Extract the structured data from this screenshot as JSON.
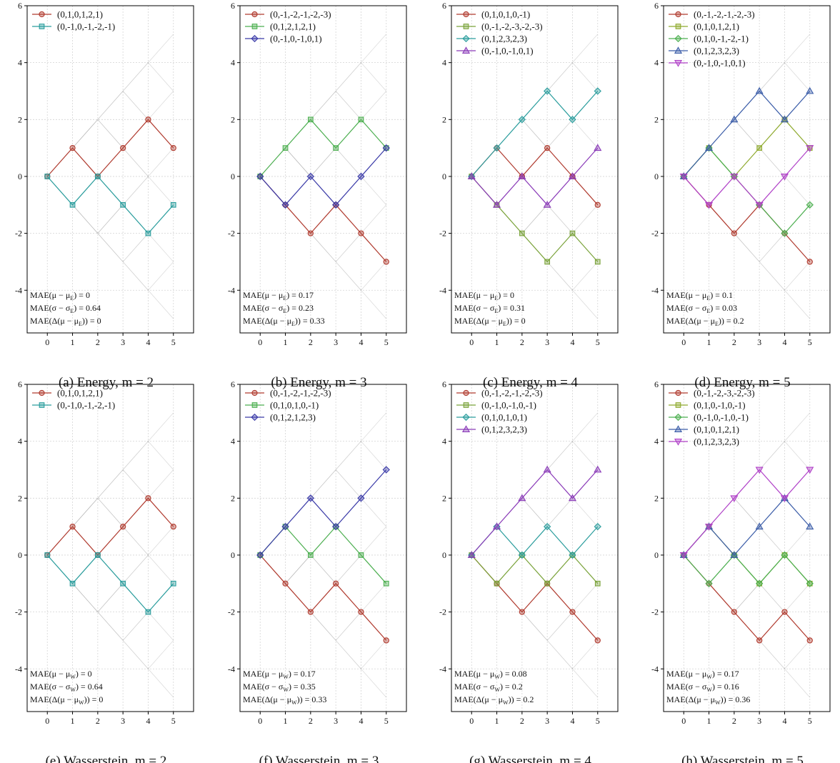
{
  "chart_data": [
    {
      "type": "line",
      "caption": "(a) Energy, m = 2",
      "xlim": [
        -0.8,
        5.8
      ],
      "ylim": [
        -5.5,
        6
      ],
      "x": [
        0,
        1,
        2,
        3,
        4,
        5
      ],
      "xticks": [
        "0",
        "1",
        "2",
        "3",
        "4",
        "5"
      ],
      "yticks": [
        "6",
        "4",
        "2",
        "0",
        "-2",
        "-4"
      ],
      "grid": true,
      "legend": "top-left",
      "series": [
        {
          "name": "(0,1,0,1,2,1)",
          "values": [
            0,
            1,
            0,
            1,
            2,
            1
          ],
          "color": "#b03a2e",
          "marker": "circle"
        },
        {
          "name": "(0,-1,0,-1,-2,-1)",
          "values": [
            0,
            -1,
            0,
            -1,
            -2,
            -1
          ],
          "color": "#2a9d9d",
          "marker": "square"
        }
      ],
      "annotations": [
        {
          "metric": "MAE(μ − μ",
          "sub": "E",
          "tail": ") = 0"
        },
        {
          "metric": "MAE(σ − σ",
          "sub": "E",
          "tail": ") = 0.64"
        },
        {
          "metric": "MAE(Δ(μ − μ",
          "sub": "E",
          "tail": ")) = 0"
        }
      ]
    },
    {
      "type": "line",
      "caption": "(b) Energy, m = 3",
      "xlim": [
        -0.8,
        5.8
      ],
      "ylim": [
        -5.5,
        6
      ],
      "x": [
        0,
        1,
        2,
        3,
        4,
        5
      ],
      "xticks": [
        "0",
        "1",
        "2",
        "3",
        "4",
        "5"
      ],
      "yticks": [
        "6",
        "4",
        "2",
        "0",
        "-2",
        "-4"
      ],
      "grid": true,
      "legend": "top-left",
      "series": [
        {
          "name": "(0,-1,-2,-1,-2,-3)",
          "values": [
            0,
            -1,
            -2,
            -1,
            -2,
            -3
          ],
          "color": "#b03a2e",
          "marker": "circle"
        },
        {
          "name": "(0,1,2,1,2,1)",
          "values": [
            0,
            1,
            2,
            1,
            2,
            1
          ],
          "color": "#4caf50",
          "marker": "square"
        },
        {
          "name": "(0,-1,0,-1,0,1)",
          "values": [
            0,
            -1,
            0,
            -1,
            0,
            1
          ],
          "color": "#3a3aa8",
          "marker": "diamond"
        }
      ],
      "annotations": [
        {
          "metric": "MAE(μ − μ",
          "sub": "E",
          "tail": ") = 0.17"
        },
        {
          "metric": "MAE(σ − σ",
          "sub": "E",
          "tail": ") = 0.23"
        },
        {
          "metric": "MAE(Δ(μ − μ",
          "sub": "E",
          "tail": ")) = 0.33"
        }
      ]
    },
    {
      "type": "line",
      "caption": "(c) Energy, m = 4",
      "xlim": [
        -0.8,
        5.8
      ],
      "ylim": [
        -5.5,
        6
      ],
      "x": [
        0,
        1,
        2,
        3,
        4,
        5
      ],
      "xticks": [
        "0",
        "1",
        "2",
        "3",
        "4",
        "5"
      ],
      "yticks": [
        "6",
        "4",
        "2",
        "0",
        "-2",
        "-4"
      ],
      "grid": true,
      "legend": "top-left",
      "series": [
        {
          "name": "(0,1,0,1,0,-1)",
          "values": [
            0,
            1,
            0,
            1,
            0,
            -1
          ],
          "color": "#b03a2e",
          "marker": "circle"
        },
        {
          "name": "(0,-1,-2,-3,-2,-3)",
          "values": [
            0,
            -1,
            -2,
            -3,
            -2,
            -3
          ],
          "color": "#7aa33a",
          "marker": "square"
        },
        {
          "name": "(0,1,2,3,2,3)",
          "values": [
            0,
            1,
            2,
            3,
            2,
            3
          ],
          "color": "#2a9d9d",
          "marker": "diamond"
        },
        {
          "name": "(0,-1,0,-1,0,1)",
          "values": [
            0,
            -1,
            0,
            -1,
            0,
            1
          ],
          "color": "#8a3ab8",
          "marker": "triangle-up"
        }
      ],
      "annotations": [
        {
          "metric": "MAE(μ − μ",
          "sub": "E",
          "tail": ") = 0"
        },
        {
          "metric": "MAE(σ − σ",
          "sub": "E",
          "tail": ") = 0.31"
        },
        {
          "metric": "MAE(Δ(μ − μ",
          "sub": "E",
          "tail": ")) = 0"
        }
      ]
    },
    {
      "type": "line",
      "caption": "(d) Energy, m = 5",
      "xlim": [
        -0.8,
        5.8
      ],
      "ylim": [
        -5.5,
        6
      ],
      "x": [
        0,
        1,
        2,
        3,
        4,
        5
      ],
      "xticks": [
        "0",
        "1",
        "2",
        "3",
        "4",
        "5"
      ],
      "yticks": [
        "6",
        "4",
        "2",
        "0",
        "-2",
        "-4"
      ],
      "grid": true,
      "legend": "top-left",
      "series": [
        {
          "name": "(0,-1,-2,-1,-2,-3)",
          "values": [
            0,
            -1,
            -2,
            -1,
            -2,
            -3
          ],
          "color": "#b03a2e",
          "marker": "circle"
        },
        {
          "name": "(0,1,0,1,2,1)",
          "values": [
            0,
            1,
            0,
            1,
            2,
            1
          ],
          "color": "#8faa2e",
          "marker": "square"
        },
        {
          "name": "(0,1,0,-1,-2,-1)",
          "values": [
            0,
            1,
            0,
            -1,
            -2,
            -1
          ],
          "color": "#4caf50",
          "marker": "diamond"
        },
        {
          "name": "(0,1,2,3,2,3)",
          "values": [
            0,
            1,
            2,
            3,
            2,
            3
          ],
          "color": "#3a5ca8",
          "marker": "triangle-up"
        },
        {
          "name": "(0,-1,0,-1,0,1)",
          "values": [
            0,
            -1,
            0,
            -1,
            0,
            1
          ],
          "color": "#b040c8",
          "marker": "triangle-down"
        }
      ],
      "annotations": [
        {
          "metric": "MAE(μ − μ",
          "sub": "E",
          "tail": ") = 0.1"
        },
        {
          "metric": "MAE(σ − σ",
          "sub": "E",
          "tail": ") = 0.03"
        },
        {
          "metric": "MAE(Δ(μ − μ",
          "sub": "E",
          "tail": ")) = 0.2"
        }
      ]
    },
    {
      "type": "line",
      "caption": "(e) Wasserstein, m = 2",
      "xlim": [
        -0.8,
        5.8
      ],
      "ylim": [
        -5.5,
        6
      ],
      "x": [
        0,
        1,
        2,
        3,
        4,
        5
      ],
      "xticks": [
        "0",
        "1",
        "2",
        "3",
        "4",
        "5"
      ],
      "yticks": [
        "6",
        "4",
        "2",
        "0",
        "-2",
        "-4"
      ],
      "grid": true,
      "legend": "top-left",
      "series": [
        {
          "name": "(0,1,0,1,2,1)",
          "values": [
            0,
            1,
            0,
            1,
            2,
            1
          ],
          "color": "#b03a2e",
          "marker": "circle"
        },
        {
          "name": "(0,-1,0,-1,-2,-1)",
          "values": [
            0,
            -1,
            0,
            -1,
            -2,
            -1
          ],
          "color": "#2a9d9d",
          "marker": "square"
        }
      ],
      "annotations": [
        {
          "metric": "MAE(μ − μ",
          "sub": "W",
          "tail": ") = 0"
        },
        {
          "metric": "MAE(σ − σ",
          "sub": "W",
          "tail": ") = 0.64"
        },
        {
          "metric": "MAE(Δ(μ − μ",
          "sub": "W",
          "tail": ")) = 0"
        }
      ]
    },
    {
      "type": "line",
      "caption": "(f) Wasserstein, m = 3",
      "xlim": [
        -0.8,
        5.8
      ],
      "ylim": [
        -5.5,
        6
      ],
      "x": [
        0,
        1,
        2,
        3,
        4,
        5
      ],
      "xticks": [
        "0",
        "1",
        "2",
        "3",
        "4",
        "5"
      ],
      "yticks": [
        "6",
        "4",
        "2",
        "0",
        "-2",
        "-4"
      ],
      "grid": true,
      "legend": "top-left",
      "series": [
        {
          "name": "(0,-1,-2,-1,-2,-3)",
          "values": [
            0,
            -1,
            -2,
            -1,
            -2,
            -3
          ],
          "color": "#b03a2e",
          "marker": "circle"
        },
        {
          "name": "(0,1,0,1,0,-1)",
          "values": [
            0,
            1,
            0,
            1,
            0,
            -1
          ],
          "color": "#4caf50",
          "marker": "square"
        },
        {
          "name": "(0,1,2,1,2,3)",
          "values": [
            0,
            1,
            2,
            1,
            2,
            3
          ],
          "color": "#3a3aa8",
          "marker": "diamond"
        }
      ],
      "annotations": [
        {
          "metric": "MAE(μ − μ",
          "sub": "W",
          "tail": ") = 0.17"
        },
        {
          "metric": "MAE(σ − σ",
          "sub": "W",
          "tail": ") = 0.35"
        },
        {
          "metric": "MAE(Δ(μ − μ",
          "sub": "W",
          "tail": ")) = 0.33"
        }
      ]
    },
    {
      "type": "line",
      "caption": "(g) Wasserstein, m = 4",
      "xlim": [
        -0.8,
        5.8
      ],
      "ylim": [
        -5.5,
        6
      ],
      "x": [
        0,
        1,
        2,
        3,
        4,
        5
      ],
      "xticks": [
        "0",
        "1",
        "2",
        "3",
        "4",
        "5"
      ],
      "yticks": [
        "6",
        "4",
        "2",
        "0",
        "-2",
        "-4"
      ],
      "grid": true,
      "legend": "top-left",
      "series": [
        {
          "name": "(0,-1,-2,-1,-2,-3)",
          "values": [
            0,
            -1,
            -2,
            -1,
            -2,
            -3
          ],
          "color": "#b03a2e",
          "marker": "circle"
        },
        {
          "name": "(0,-1,0,-1,0,-1)",
          "values": [
            0,
            -1,
            0,
            -1,
            0,
            -1
          ],
          "color": "#7aa33a",
          "marker": "square"
        },
        {
          "name": "(0,1,0,1,0,1)",
          "values": [
            0,
            1,
            0,
            1,
            0,
            1
          ],
          "color": "#2a9d9d",
          "marker": "diamond"
        },
        {
          "name": "(0,1,2,3,2,3)",
          "values": [
            0,
            1,
            2,
            3,
            2,
            3
          ],
          "color": "#8a3ab8",
          "marker": "triangle-up"
        }
      ],
      "annotations": [
        {
          "metric": "MAE(μ − μ",
          "sub": "W",
          "tail": ") = 0.08"
        },
        {
          "metric": "MAE(σ − σ",
          "sub": "W",
          "tail": ") = 0.2"
        },
        {
          "metric": "MAE(Δ(μ − μ",
          "sub": "W",
          "tail": ")) = 0.2"
        }
      ]
    },
    {
      "type": "line",
      "caption": "(h) Wasserstein, m = 5",
      "xlim": [
        -0.8,
        5.8
      ],
      "ylim": [
        -5.5,
        6
      ],
      "x": [
        0,
        1,
        2,
        3,
        4,
        5
      ],
      "xticks": [
        "0",
        "1",
        "2",
        "3",
        "4",
        "5"
      ],
      "yticks": [
        "6",
        "4",
        "2",
        "0",
        "-2",
        "-4"
      ],
      "grid": true,
      "legend": "top-left",
      "series": [
        {
          "name": "(0,-1,-2,-3,-2,-3)",
          "values": [
            0,
            -1,
            -2,
            -3,
            -2,
            -3
          ],
          "color": "#b03a2e",
          "marker": "circle"
        },
        {
          "name": "(0,1,0,-1,0,-1)",
          "values": [
            0,
            1,
            0,
            -1,
            0,
            -1
          ],
          "color": "#8faa2e",
          "marker": "square"
        },
        {
          "name": "(0,-1,0,-1,0,-1)",
          "values": [
            0,
            -1,
            0,
            -1,
            0,
            -1
          ],
          "color": "#4caf50",
          "marker": "diamond"
        },
        {
          "name": "(0,1,0,1,2,1)",
          "values": [
            0,
            1,
            0,
            1,
            2,
            1
          ],
          "color": "#3a5ca8",
          "marker": "triangle-up"
        },
        {
          "name": "(0,1,2,3,2,3)",
          "values": [
            0,
            1,
            2,
            3,
            2,
            3
          ],
          "color": "#b040c8",
          "marker": "triangle-down"
        }
      ],
      "annotations": [
        {
          "metric": "MAE(μ − μ",
          "sub": "W",
          "tail": ") = 0.17"
        },
        {
          "metric": "MAE(σ − σ",
          "sub": "W",
          "tail": ") = 0.16"
        },
        {
          "metric": "MAE(Δ(μ − μ",
          "sub": "W",
          "tail": ")) = 0.36"
        }
      ]
    }
  ]
}
